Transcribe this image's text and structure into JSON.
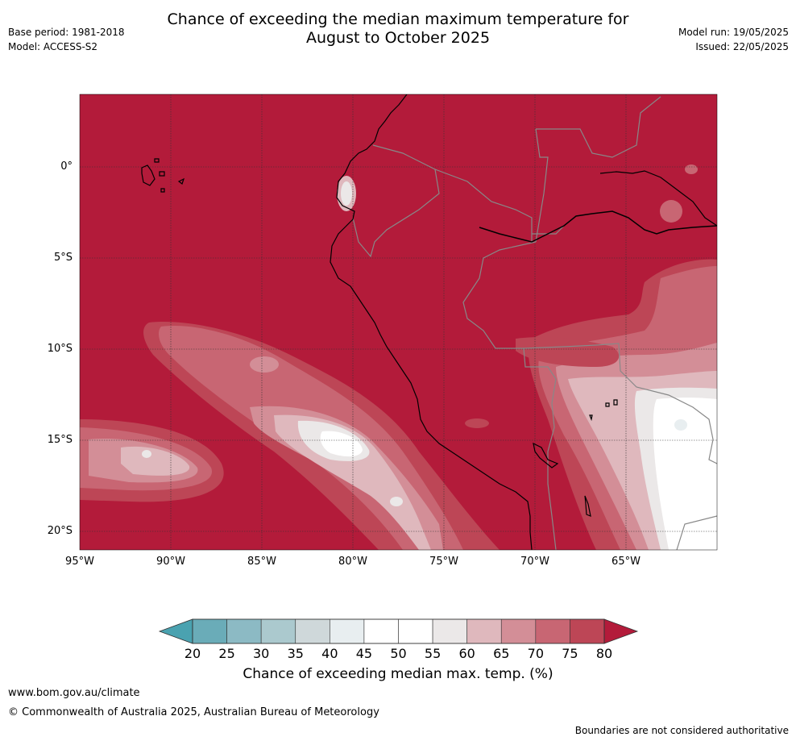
{
  "header": {
    "title_line1": "Chance of exceeding the median maximum temperature for",
    "title_line2": "August to October 2025",
    "base_period": "Base period: 1981-2018",
    "model": "Model: ACCESS-S2",
    "model_run": "Model run: 19/05/2025",
    "issued": "Issued: 22/05/2025"
  },
  "map": {
    "lat_labels": [
      "0°",
      "5°S",
      "10°S",
      "15°S",
      "20°S"
    ],
    "lat_values": [
      0,
      -5,
      -10,
      -15,
      -20
    ],
    "lon_labels": [
      "95°W",
      "90°W",
      "85°W",
      "80°W",
      "75°W",
      "70°W",
      "65°W"
    ],
    "lon_values": [
      -95,
      -90,
      -85,
      -80,
      -75,
      -70,
      -65
    ],
    "extent": {
      "lon_min": -95,
      "lon_max": -60,
      "lat_min": -21,
      "lat_max": 4
    },
    "background_color": "#b31b3a"
  },
  "colorbar": {
    "ticks": [
      "20",
      "25",
      "30",
      "35",
      "40",
      "45",
      "50",
      "55",
      "60",
      "65",
      "70",
      "75",
      "80"
    ],
    "colors": [
      "#6aacb8",
      "#8cbac4",
      "#abc9ce",
      "#cfd8da",
      "#e8eef0",
      "#ffffff",
      "#ffffff",
      "#ebe8e8",
      "#dfb8bd",
      "#d38e97",
      "#c86673",
      "#bd4656"
    ],
    "under_color": "#4aa2b0",
    "over_color": "#b31b3a",
    "label": "Chance of exceeding median max. temp. (%)"
  },
  "footer": {
    "url": "www.bom.gov.au/climate",
    "copyright": "© Commonwealth of Australia 2025, Australian Bureau of Meteorology",
    "note": "Boundaries are not considered authoritative"
  }
}
